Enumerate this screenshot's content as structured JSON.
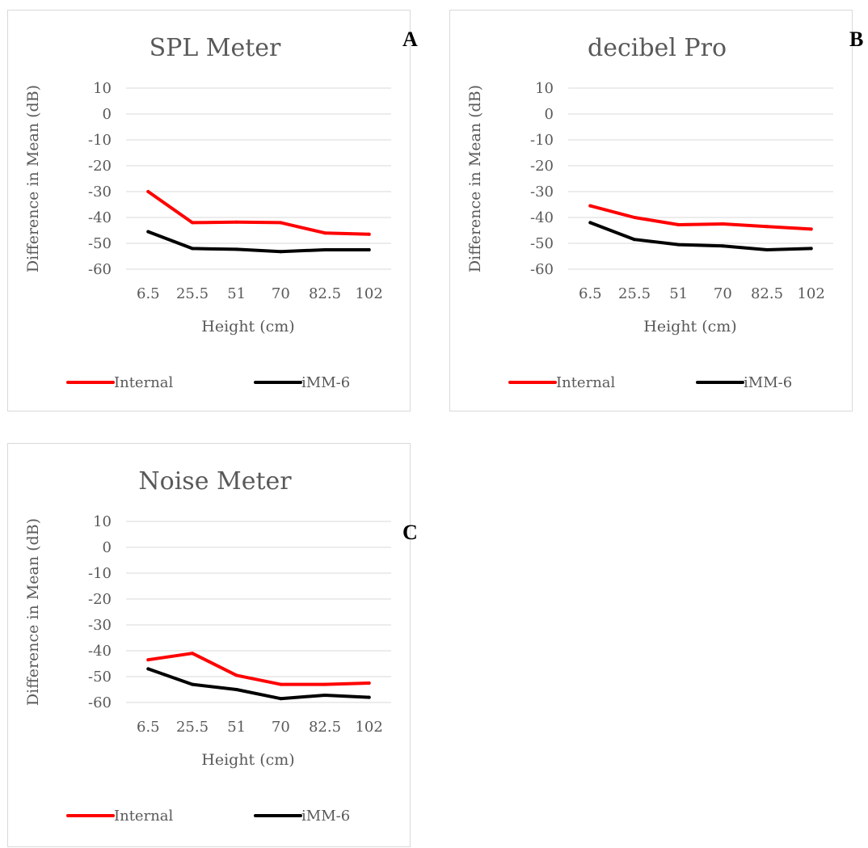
{
  "panel_letters": [
    "A",
    "B",
    "C"
  ],
  "colors": {
    "internal": "#ff0000",
    "imm6": "#000000",
    "grid": "#d9d9d9",
    "text": "#595959"
  },
  "chart_data": [
    {
      "type": "line",
      "title": "SPL Meter",
      "xlabel": "Height (cm)",
      "ylabel": "Difference in Mean (dB)",
      "categories": [
        "6.5",
        "25.5",
        "51",
        "70",
        "82.5",
        "102"
      ],
      "ylim": [
        -60,
        10
      ],
      "yticks": [
        10,
        0,
        -10,
        -20,
        -30,
        -40,
        -50,
        -60
      ],
      "grid": true,
      "legend": "bottom",
      "series": [
        {
          "name": "Internal",
          "color": "#ff0000",
          "values": [
            -30,
            -42,
            -41.8,
            -42,
            -46,
            -46.5
          ]
        },
        {
          "name": "iMM-6",
          "color": "#000000",
          "values": [
            -45.5,
            -52,
            -52.3,
            -53.2,
            -52.5,
            -52.5
          ]
        }
      ]
    },
    {
      "type": "line",
      "title": "decibel Pro",
      "xlabel": "Height (cm)",
      "ylabel": "Difference in Mean (dB)",
      "categories": [
        "6.5",
        "25.5",
        "51",
        "70",
        "82.5",
        "102"
      ],
      "ylim": [
        -60,
        10
      ],
      "yticks": [
        10,
        0,
        -10,
        -20,
        -30,
        -40,
        -50,
        -60
      ],
      "grid": true,
      "legend": "bottom",
      "series": [
        {
          "name": "Internal",
          "color": "#ff0000",
          "values": [
            -35.5,
            -40,
            -42.8,
            -42.5,
            -43.5,
            -44.5
          ]
        },
        {
          "name": "iMM-6",
          "color": "#000000",
          "values": [
            -42,
            -48.5,
            -50.5,
            -51,
            -52.5,
            -52
          ]
        }
      ]
    },
    {
      "type": "line",
      "title": "Noise Meter",
      "xlabel": "Height (cm)",
      "ylabel": "Difference in Mean (dB)",
      "categories": [
        "6.5",
        "25.5",
        "51",
        "70",
        "82.5",
        "102"
      ],
      "ylim": [
        -60,
        10
      ],
      "yticks": [
        10,
        0,
        -10,
        -20,
        -30,
        -40,
        -50,
        -60
      ],
      "grid": true,
      "legend": "bottom",
      "series": [
        {
          "name": "Internal",
          "color": "#ff0000",
          "values": [
            -43.5,
            -41,
            -49.5,
            -53,
            -53,
            -52.5
          ]
        },
        {
          "name": "iMM-6",
          "color": "#000000",
          "values": [
            -47,
            -53,
            -55,
            -58.5,
            -57.2,
            -58
          ]
        }
      ]
    }
  ]
}
